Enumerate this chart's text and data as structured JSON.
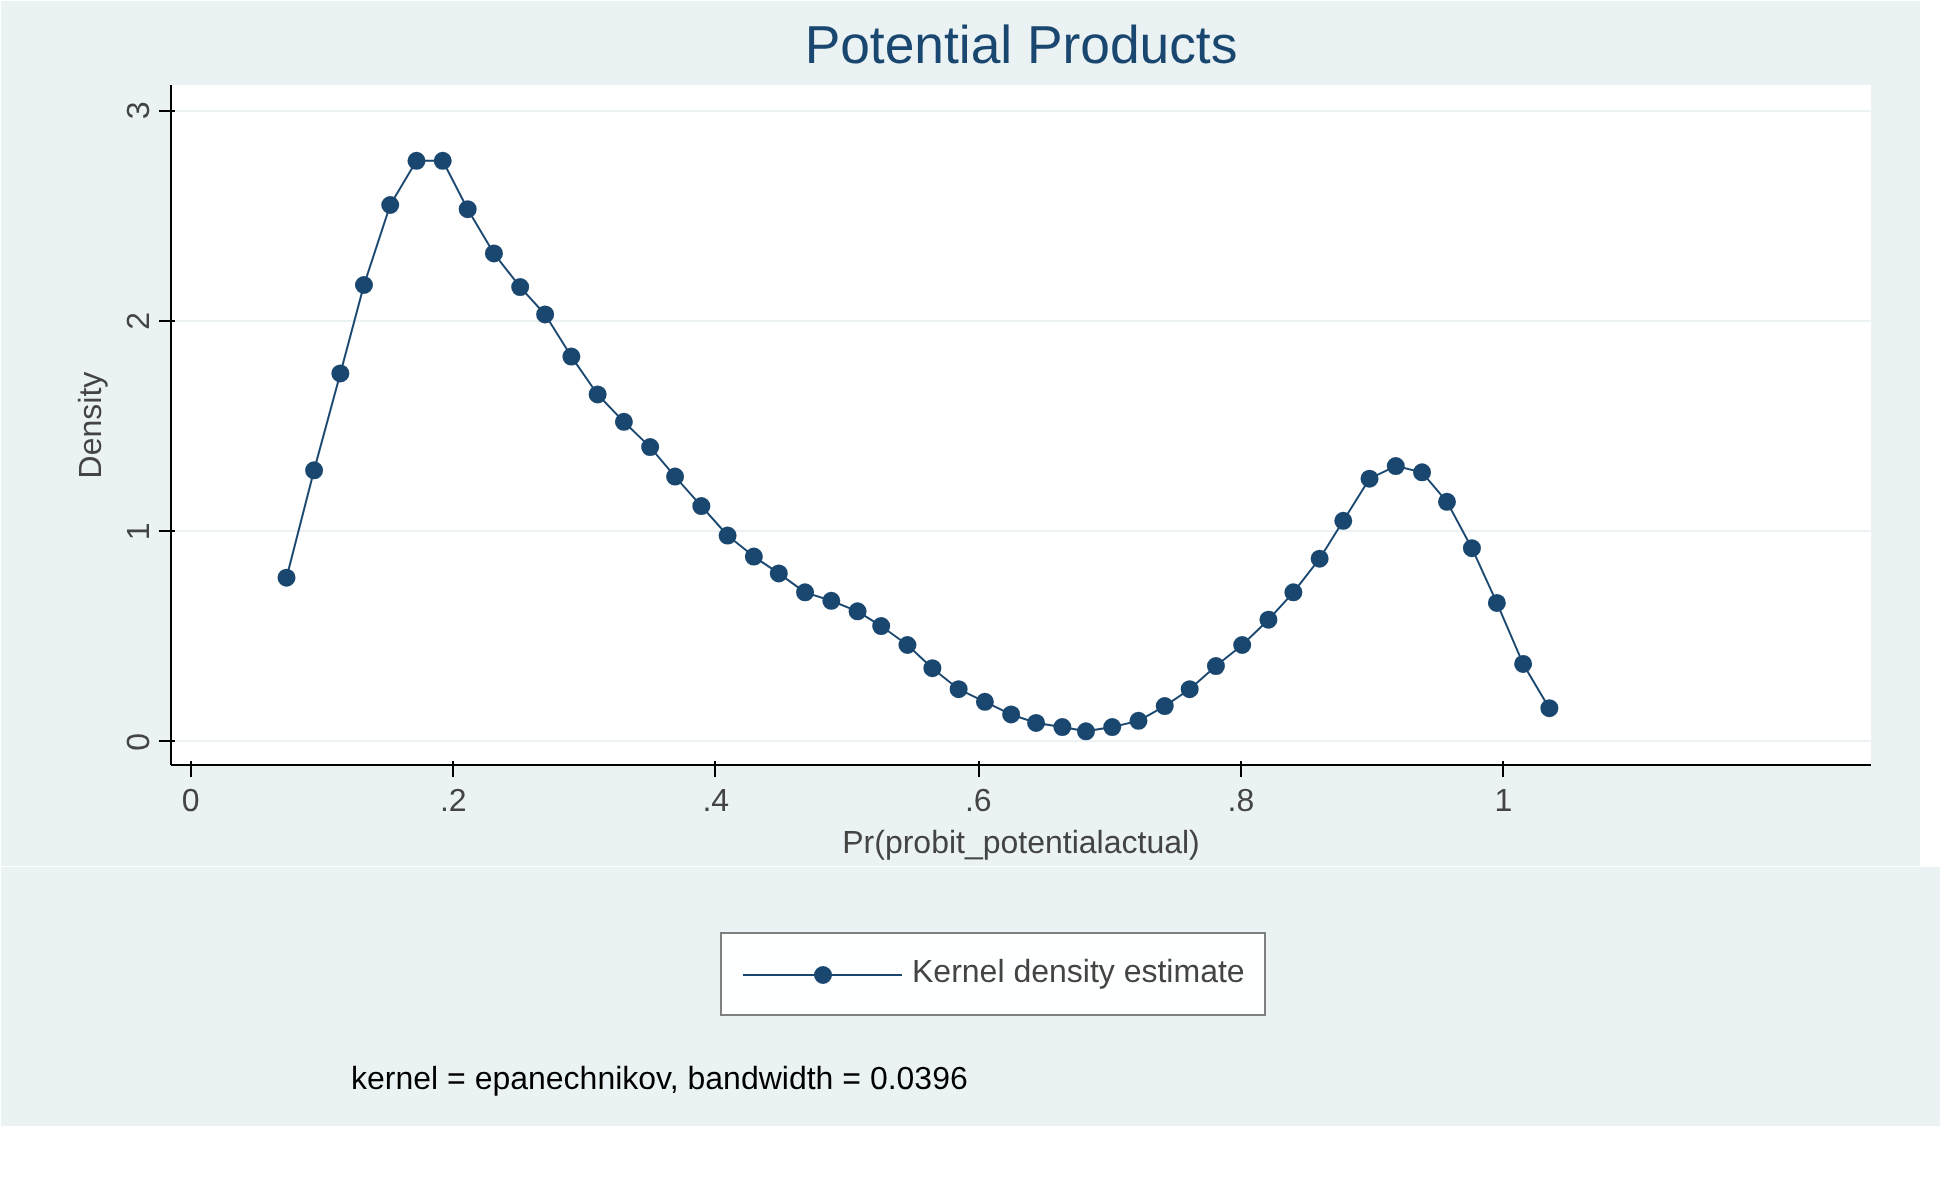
{
  "chart_data": {
    "type": "line",
    "title": "Potential Products",
    "xlabel": "Pr(probit_potentialactual)",
    "ylabel": "Density",
    "x": [
      0.073,
      0.094,
      0.114,
      0.132,
      0.152,
      0.172,
      0.192,
      0.211,
      0.231,
      0.251,
      0.27,
      0.29,
      0.31,
      0.33,
      0.35,
      0.369,
      0.389,
      0.409,
      0.429,
      0.448,
      0.468,
      0.488,
      0.508,
      0.526,
      0.546,
      0.565,
      0.585,
      0.605,
      0.625,
      0.644,
      0.664,
      0.682,
      0.702,
      0.722,
      0.742,
      0.761,
      0.781,
      0.801,
      0.821,
      0.84,
      0.86,
      0.878,
      0.898,
      0.918,
      0.938,
      0.957,
      0.976,
      0.995,
      1.015,
      1.035
    ],
    "series": [
      {
        "name": "Kernel density estimate",
        "color": "#1a476f",
        "values": [
          0.78,
          1.29,
          1.75,
          2.17,
          2.55,
          2.76,
          2.76,
          2.53,
          2.32,
          2.16,
          2.03,
          1.83,
          1.65,
          1.52,
          1.4,
          1.26,
          1.12,
          0.98,
          0.88,
          0.8,
          0.71,
          0.67,
          0.62,
          0.55,
          0.46,
          0.35,
          0.25,
          0.19,
          0.13,
          0.09,
          0.07,
          0.05,
          0.07,
          0.1,
          0.17,
          0.25,
          0.36,
          0.46,
          0.58,
          0.71,
          0.87,
          1.05,
          1.25,
          1.31,
          1.28,
          1.14,
          0.92,
          0.66,
          0.37,
          0.16
        ]
      }
    ],
    "xlim": [
      -0.015,
      1.28
    ],
    "ylim": [
      -0.11,
      3.12
    ],
    "xticks": [
      {
        "value": 0,
        "label": "0"
      },
      {
        "value": 0.2,
        "label": ".2"
      },
      {
        "value": 0.4,
        "label": ".4"
      },
      {
        "value": 0.6,
        "label": ".6"
      },
      {
        "value": 0.8,
        "label": ".8"
      },
      {
        "value": 1,
        "label": "1"
      }
    ],
    "yticks": [
      0,
      1,
      2,
      3
    ],
    "grid": "y",
    "legend": "bottom",
    "marker": "circle",
    "line_style": "solid",
    "annotations": [
      "kernel = epanechnikov, bandwidth = 0.0396"
    ]
  }
}
